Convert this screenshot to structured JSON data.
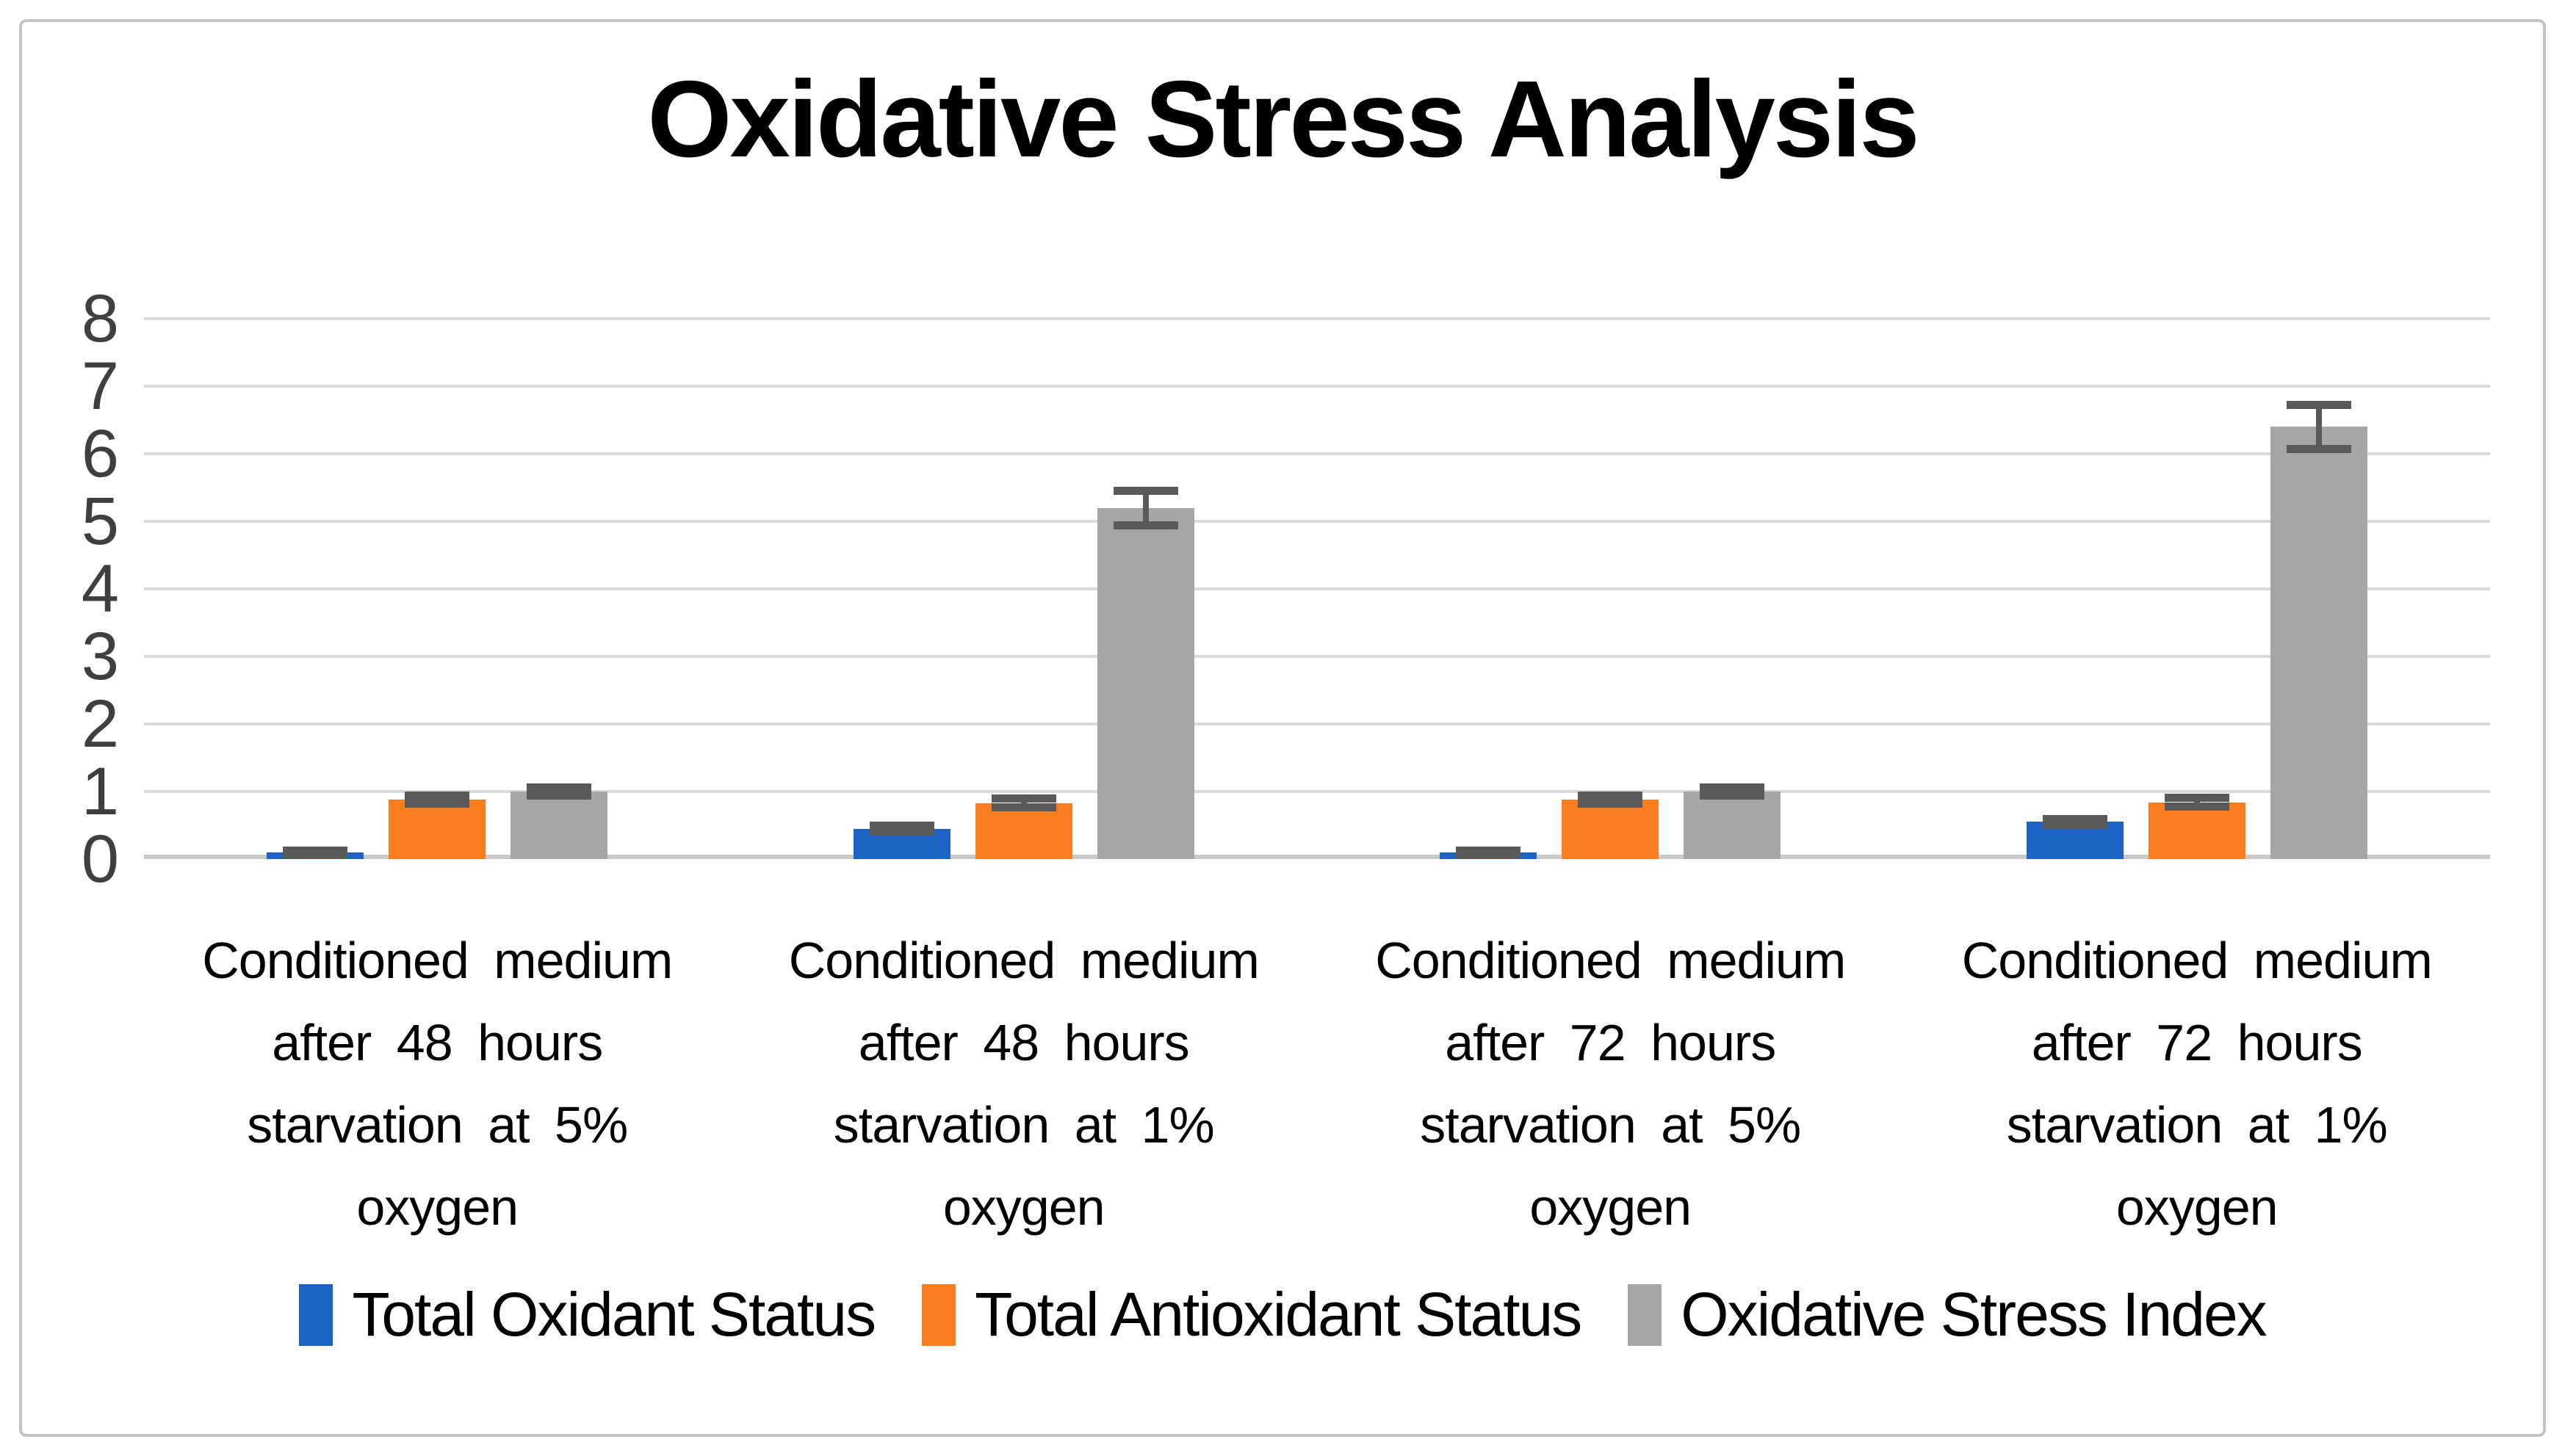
{
  "chart_data": {
    "type": "bar",
    "title": "Oxidative Stress Analysis",
    "xlabel": "",
    "ylabel": "",
    "ylim": [
      0,
      8
    ],
    "yticks": [
      0,
      1,
      2,
      3,
      4,
      5,
      6,
      7,
      8
    ],
    "grid": true,
    "legend_position": "bottom",
    "error_bar_color": "#595959",
    "gridline_color": "#d9d9d9",
    "categories": [
      {
        "label": "Conditioned medium after 48 hours starvation at 5% oxygen",
        "lines": [
          "Conditioned medium",
          "after 48 hours",
          "starvation at 5%",
          "oxygen"
        ]
      },
      {
        "label": "Conditioned medium after 48 hours starvation at 1% oxygen",
        "lines": [
          "Conditioned medium",
          "after 48 hours",
          "starvation at 1%",
          "oxygen"
        ]
      },
      {
        "label": "Conditioned medium after 72 hours starvation at 5% oxygen",
        "lines": [
          "Conditioned medium",
          "after 72 hours",
          "starvation at 5%",
          "oxygen"
        ]
      },
      {
        "label": "Conditioned medium after 72 hours starvation at 1% oxygen",
        "lines": [
          "Conditioned medium",
          "after 72 hours",
          "starvation at 1%",
          "oxygen"
        ]
      }
    ],
    "series": [
      {
        "name": "Total Oxidant Status",
        "color": "#1B63C5",
        "values": [
          0.1,
          0.45,
          0.1,
          0.55
        ],
        "error_bars": [
          0.03,
          0.05,
          0.03,
          0.05
        ]
      },
      {
        "name": "Total Antioxidant Status",
        "color": "#FA7D20",
        "values": [
          0.88,
          0.83,
          0.88,
          0.84
        ],
        "error_bars": [
          0.07,
          0.07,
          0.07,
          0.07
        ]
      },
      {
        "name": "Oxidative Stress Index",
        "color": "#A6A6A6",
        "values": [
          1.0,
          5.2,
          1.0,
          6.4
        ],
        "error_bars": [
          0.07,
          0.26,
          0.07,
          0.33
        ]
      }
    ]
  }
}
